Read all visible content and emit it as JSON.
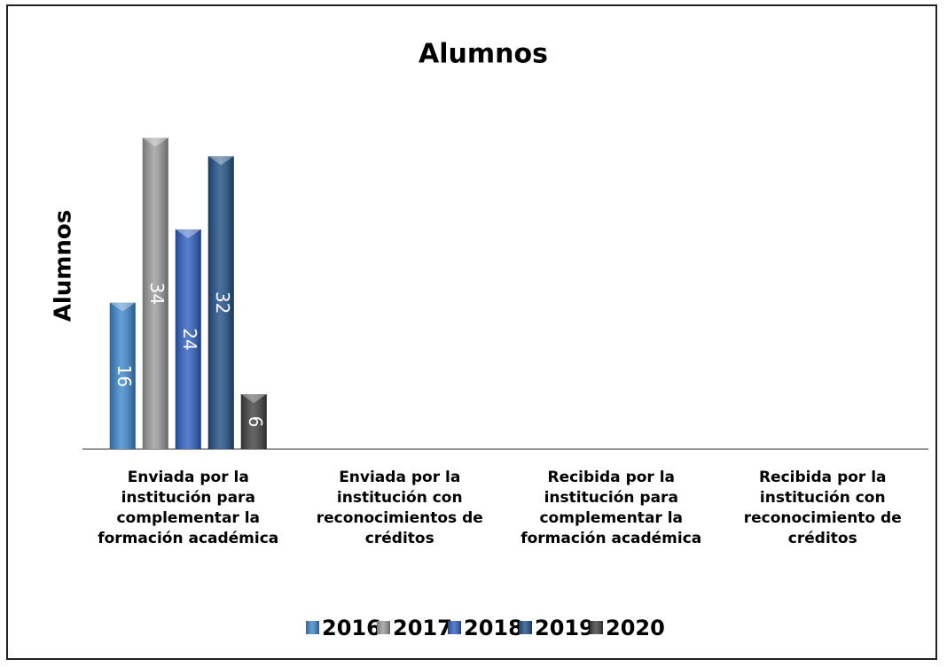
{
  "chart_data": {
    "type": "bar",
    "title": "Alumnos",
    "y_label": "Alumnos",
    "categories": [
      "Enviada por la institución para complementar la formación académica",
      "Enviada por la institución con reconocimientos de créditos",
      "Recibida por la institución para complementar la formación académica",
      "Recibida por la institución con reconocimiento de créditos"
    ],
    "series": [
      {
        "name": "2016",
        "color": "#3d86cc",
        "values": [
          16,
          null,
          null,
          null
        ]
      },
      {
        "name": "2017",
        "color": "#9b9b9b",
        "values": [
          34,
          null,
          null,
          null
        ]
      },
      {
        "name": "2018",
        "color": "#2e5fc2",
        "values": [
          24,
          null,
          null,
          null
        ]
      },
      {
        "name": "2019",
        "color": "#1e4f88",
        "values": [
          32,
          null,
          null,
          null
        ]
      },
      {
        "name": "2020",
        "color": "#404040",
        "values": [
          6,
          null,
          null,
          null
        ]
      }
    ],
    "ylim": [
      0,
      36
    ],
    "legend": "bottom"
  }
}
